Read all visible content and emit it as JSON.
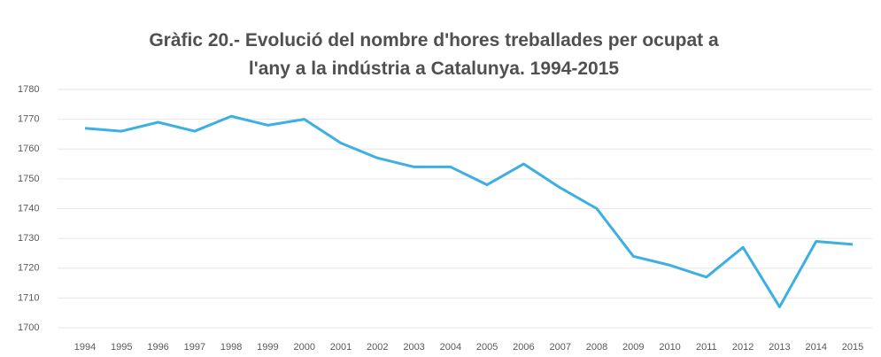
{
  "chart_data": {
    "type": "line",
    "title": "Gràfic 20.- Evolució del nombre d'hores treballades per ocupat a l'any a la indústria a Catalunya. 1994-2015",
    "categories": [
      "1994",
      "1995",
      "1996",
      "1997",
      "1998",
      "1999",
      "2000",
      "2001",
      "2002",
      "2003",
      "2004",
      "2005",
      "2006",
      "2007",
      "2008",
      "2009",
      "2010",
      "2011",
      "2012",
      "2013",
      "2014",
      "2015"
    ],
    "series": [
      {
        "name": "Hores treballades per ocupat",
        "color": "#3cb0e2",
        "values": [
          1767,
          1766,
          1769,
          1766,
          1771,
          1768,
          1770,
          1762,
          1757,
          1754,
          1754,
          1748,
          1755,
          1747,
          1740,
          1724,
          1721,
          1717,
          1727,
          1707,
          1729,
          1728
        ]
      }
    ],
    "ylim": [
      1700,
      1780
    ],
    "yticks": [
      1700,
      1710,
      1720,
      1730,
      1740,
      1750,
      1760,
      1770,
      1780
    ],
    "grid": true
  }
}
